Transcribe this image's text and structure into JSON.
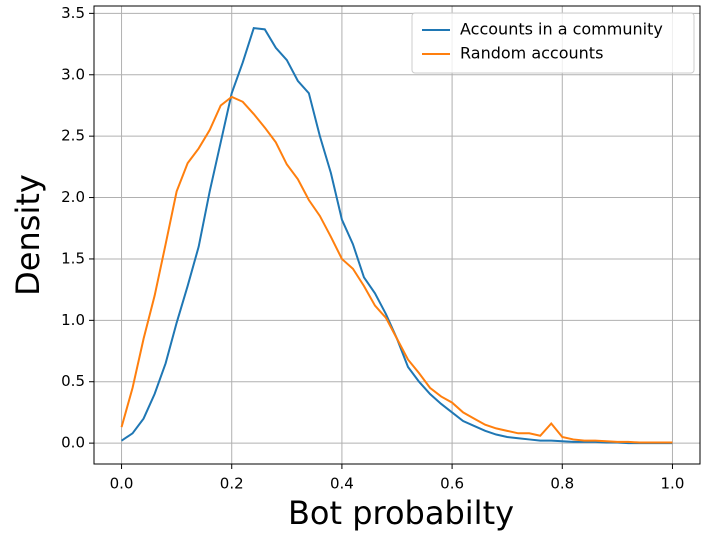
{
  "chart_data": {
    "type": "line",
    "xlabel": "Bot probabilty",
    "ylabel": "Density",
    "x": [
      0,
      0.02,
      0.04,
      0.06,
      0.08,
      0.1,
      0.12,
      0.14,
      0.16,
      0.18,
      0.2,
      0.22,
      0.24,
      0.26,
      0.28,
      0.3,
      0.32,
      0.34,
      0.36,
      0.38,
      0.4,
      0.42,
      0.44,
      0.46,
      0.48,
      0.5,
      0.52,
      0.54,
      0.56,
      0.58,
      0.6,
      0.62,
      0.64,
      0.66,
      0.68,
      0.7,
      0.72,
      0.74,
      0.76,
      0.78,
      0.8,
      0.82,
      0.84,
      0.86,
      0.88,
      0.9,
      0.92,
      0.94,
      0.96,
      0.98,
      1
    ],
    "series": [
      {
        "name": "Accounts in a community",
        "color": "#1f77b4",
        "values": [
          0.02,
          0.08,
          0.2,
          0.4,
          0.65,
          0.98,
          1.28,
          1.6,
          2.05,
          2.45,
          2.85,
          3.1,
          3.38,
          3.37,
          3.22,
          3.12,
          2.95,
          2.85,
          2.5,
          2.2,
          1.82,
          1.62,
          1.35,
          1.22,
          1.05,
          0.85,
          0.62,
          0.5,
          0.4,
          0.32,
          0.25,
          0.18,
          0.14,
          0.1,
          0.07,
          0.05,
          0.04,
          0.03,
          0.02,
          0.02,
          0.015,
          0.01,
          0.01,
          0.01,
          0.005,
          0.005,
          0,
          0,
          0,
          0,
          0
        ]
      },
      {
        "name": "Random accounts",
        "color": "#ff7f0e",
        "values": [
          0.13,
          0.45,
          0.85,
          1.2,
          1.62,
          2.05,
          2.28,
          2.4,
          2.55,
          2.75,
          2.82,
          2.78,
          2.68,
          2.57,
          2.45,
          2.27,
          2.15,
          1.98,
          1.85,
          1.68,
          1.5,
          1.42,
          1.28,
          1.12,
          1.02,
          0.85,
          0.68,
          0.57,
          0.45,
          0.38,
          0.33,
          0.25,
          0.2,
          0.15,
          0.12,
          0.1,
          0.08,
          0.08,
          0.06,
          0.16,
          0.05,
          0.03,
          0.02,
          0.02,
          0.015,
          0.01,
          0.01,
          0.005,
          0.005,
          0.005,
          0.005
        ]
      }
    ],
    "xlim": [
      -0.05,
      1.05
    ],
    "ylim": [
      -0.17,
      3.56
    ],
    "xticks": [
      {
        "value": 0,
        "label": "0.0"
      },
      0.2,
      0.4,
      0.6,
      0.8,
      {
        "value": 1,
        "label": "1.0"
      }
    ],
    "yticks": [
      {
        "value": 0,
        "label": "0.0"
      },
      0.5,
      {
        "value": 1,
        "label": "1.0"
      },
      1.5,
      {
        "value": 2,
        "label": "2.0"
      },
      2.5,
      {
        "value": 3,
        "label": "3.0"
      },
      3.5
    ],
    "grid": true,
    "legend": "upper-right"
  }
}
